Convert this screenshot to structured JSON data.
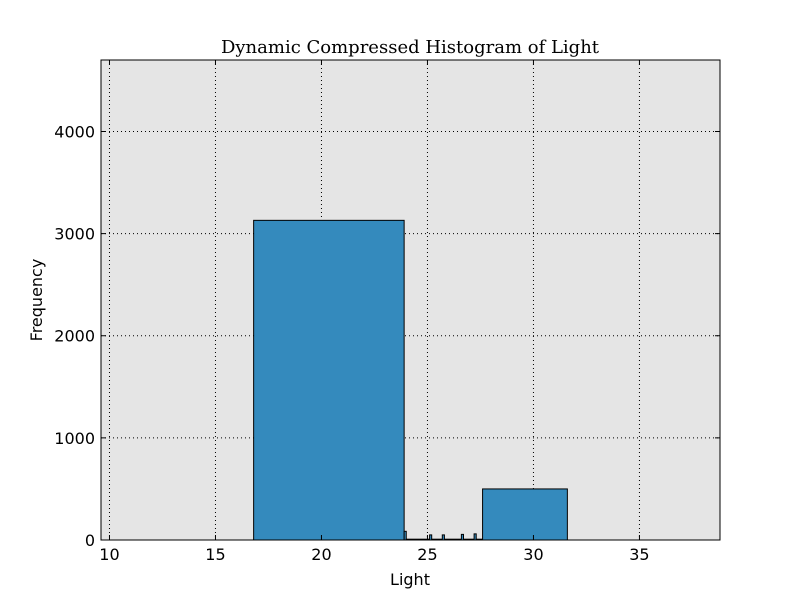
{
  "chart_data": {
    "type": "bar",
    "title": "Dynamic Compressed Histogram of Light",
    "xlabel": "Light",
    "ylabel": "Frequency",
    "xlim": [
      9.6,
      38.8
    ],
    "ylim": [
      0,
      4700
    ],
    "x_ticks": [
      10,
      15,
      20,
      25,
      30,
      35
    ],
    "y_ticks": [
      0,
      1000,
      2000,
      3000,
      4000
    ],
    "grid": true,
    "bar_color": "#348abd",
    "plot_background": "#e5e5e5",
    "bins": [
      {
        "x0": 16.8,
        "x1": 23.9,
        "value": 3130
      },
      {
        "x0": 23.9,
        "x1": 24.0,
        "value": 85
      },
      {
        "x0": 24.0,
        "x1": 25.1,
        "value": 8
      },
      {
        "x0": 25.1,
        "x1": 25.2,
        "value": 50
      },
      {
        "x0": 25.2,
        "x1": 25.7,
        "value": 8
      },
      {
        "x0": 25.7,
        "x1": 25.8,
        "value": 50
      },
      {
        "x0": 25.8,
        "x1": 26.6,
        "value": 8
      },
      {
        "x0": 26.6,
        "x1": 26.7,
        "value": 55
      },
      {
        "x0": 26.7,
        "x1": 27.2,
        "value": 8
      },
      {
        "x0": 27.2,
        "x1": 27.3,
        "value": 60
      },
      {
        "x0": 27.3,
        "x1": 27.6,
        "value": 8
      },
      {
        "x0": 27.6,
        "x1": 31.6,
        "value": 500
      }
    ]
  }
}
